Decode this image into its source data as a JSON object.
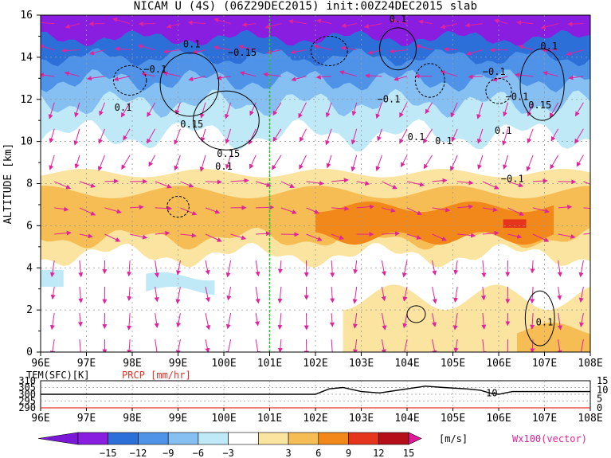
{
  "title": "NICAM U (4S) (06Z29DEC2015) init:00Z24DEC2015 slab",
  "colors": {
    "c_m15": "#8a1ee0",
    "c_m12": "#2d6fd8",
    "c_m9": "#4e93e8",
    "c_m6": "#86bff2",
    "c_m3": "#bfe9f7",
    "c_0": "#ffffff",
    "c_3": "#fbe3a0",
    "c_6": "#f6bd55",
    "c_9": "#f2881a",
    "c_12": "#e5351d",
    "c_15": "#b50f1a",
    "c_over": "#e01a9a",
    "c_under": "#7b18d8",
    "vector": "#e0249a",
    "ref_line": "#28c328",
    "prcp": "#e0342a"
  },
  "chart_data": [
    {
      "type": "heatmap",
      "title": "NICAM U (4S) (06Z29DEC2015) init:00Z24DEC2015 slab",
      "ylabel": "ALTITUDE [km]",
      "xlabel": "",
      "x_ticks": [
        "96E",
        "97E",
        "98E",
        "99E",
        "100E",
        "101E",
        "102E",
        "103E",
        "104E",
        "105E",
        "106E",
        "107E",
        "108E"
      ],
      "y_ticks": [
        "0",
        "2",
        "4",
        "6",
        "8",
        "10",
        "12",
        "14",
        "16"
      ],
      "xlim": [
        96,
        108
      ],
      "ylim": [
        0,
        16
      ],
      "grid": true,
      "reference_line_lon": 101,
      "colorbar": {
        "levels": [
          -15,
          -12,
          -9,
          -6,
          -3,
          3,
          6,
          9,
          12,
          15
        ],
        "labels": [
          "−15",
          "−12",
          "−9",
          "−6",
          "−3",
          "3",
          "6",
          "9",
          "12",
          "15"
        ],
        "unit": "[m/s]"
      },
      "vector_label": "Wx100(vector)",
      "contour_labels": [
        {
          "text": "0.1",
          "lon": 99.3,
          "alt": 14.6
        },
        {
          "text": "−0.15",
          "lon": 100.4,
          "alt": 14.2
        },
        {
          "text": "−0.1",
          "lon": 98.5,
          "alt": 13.4
        },
        {
          "text": "0.1",
          "lon": 97.8,
          "alt": 11.6
        },
        {
          "text": "0.15",
          "lon": 99.3,
          "alt": 10.8
        },
        {
          "text": "0.15",
          "lon": 100.1,
          "alt": 9.4
        },
        {
          "text": "0.1",
          "lon": 100.0,
          "alt": 8.8
        },
        {
          "text": "−0.1",
          "lon": 103.6,
          "alt": 12.0
        },
        {
          "text": "0.1",
          "lon": 103.8,
          "alt": 15.8
        },
        {
          "text": "−0.1",
          "lon": 105.9,
          "alt": 13.3
        },
        {
          "text": "−0.1",
          "lon": 106.4,
          "alt": 12.1
        },
        {
          "text": "0.1",
          "lon": 107.1,
          "alt": 14.5
        },
        {
          "text": "0.15",
          "lon": 106.9,
          "alt": 11.7
        },
        {
          "text": "0.1",
          "lon": 104.2,
          "alt": 10.2
        },
        {
          "text": "0.1",
          "lon": 104.8,
          "alt": 10.0
        },
        {
          "text": "0.1",
          "lon": 106.1,
          "alt": 10.5
        },
        {
          "text": "−0.1",
          "lon": 106.3,
          "alt": 8.2
        },
        {
          "text": "0.1",
          "lon": 107.0,
          "alt": 1.4
        }
      ]
    },
    {
      "type": "line",
      "series": [
        {
          "name": "TEM(SFC)[K]",
          "y_ticks": [
            "290",
            "295",
            "300",
            "305",
            "310"
          ],
          "ylim": [
            290,
            310
          ],
          "x": [
            96,
            101,
            102,
            102.3,
            102.6,
            103,
            103.4,
            104,
            104.4,
            104.8,
            105.3,
            105.6,
            105.8,
            106,
            106.3,
            108
          ],
          "values": [
            300,
            300,
            300,
            304,
            305,
            302,
            301,
            304,
            306,
            305,
            304,
            303,
            301,
            300,
            302,
            302
          ]
        },
        {
          "name": "PRCP [mm/hr]",
          "y_ticks": [
            "0",
            "5",
            "10",
            "15"
          ],
          "ylim": [
            0,
            15
          ],
          "x": [
            96,
            108
          ],
          "values": [
            0,
            0
          ]
        }
      ],
      "x_ticks": [
        "96E",
        "97E",
        "98E",
        "99E",
        "100E",
        "101E",
        "102E",
        "103E",
        "104E",
        "105E",
        "106E",
        "107E",
        "108E"
      ],
      "xlim": [
        96,
        108
      ],
      "annotations": [
        "10"
      ]
    }
  ]
}
